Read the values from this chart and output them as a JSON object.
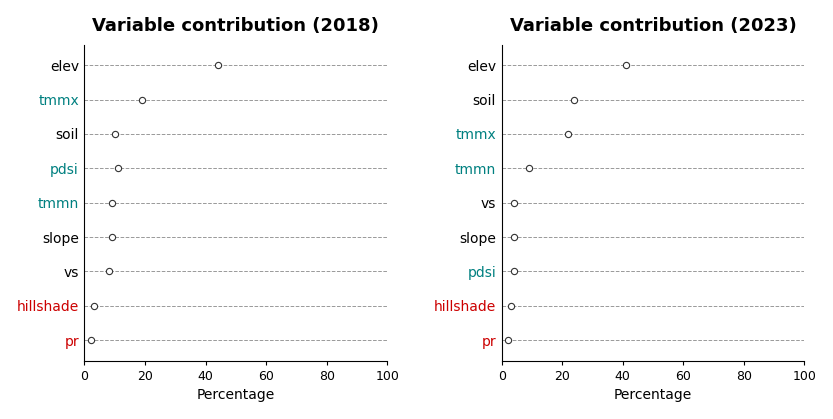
{
  "title_2018": "Variable contribution (2018)",
  "title_2023": "Variable contribution (2023)",
  "xlabel": "Percentage",
  "panel_2018": {
    "variables": [
      "elev",
      "tmmx",
      "soil",
      "pdsi",
      "tmmn",
      "slope",
      "vs",
      "hillshade",
      "pr"
    ],
    "values": [
      44,
      19,
      10,
      11,
      9,
      9,
      8,
      3,
      2
    ],
    "colors": [
      "#000000",
      "#008080",
      "#000000",
      "#008080",
      "#008080",
      "#000000",
      "#000000",
      "#cc0000",
      "#cc0000"
    ]
  },
  "panel_2023": {
    "variables": [
      "elev",
      "soil",
      "tmmx",
      "tmmn",
      "vs",
      "slope",
      "pdsi",
      "hillshade",
      "pr"
    ],
    "values": [
      41,
      24,
      22,
      9,
      4,
      4,
      4,
      3,
      2
    ],
    "colors": [
      "#000000",
      "#000000",
      "#008080",
      "#008080",
      "#000000",
      "#000000",
      "#008080",
      "#cc0000",
      "#cc0000"
    ]
  },
  "xlim": [
    0,
    100
  ],
  "xticks": [
    0,
    20,
    40,
    60,
    80,
    100
  ],
  "background_color": "#ffffff",
  "title_fontsize": 13,
  "label_fontsize": 10,
  "tick_fontsize": 9
}
